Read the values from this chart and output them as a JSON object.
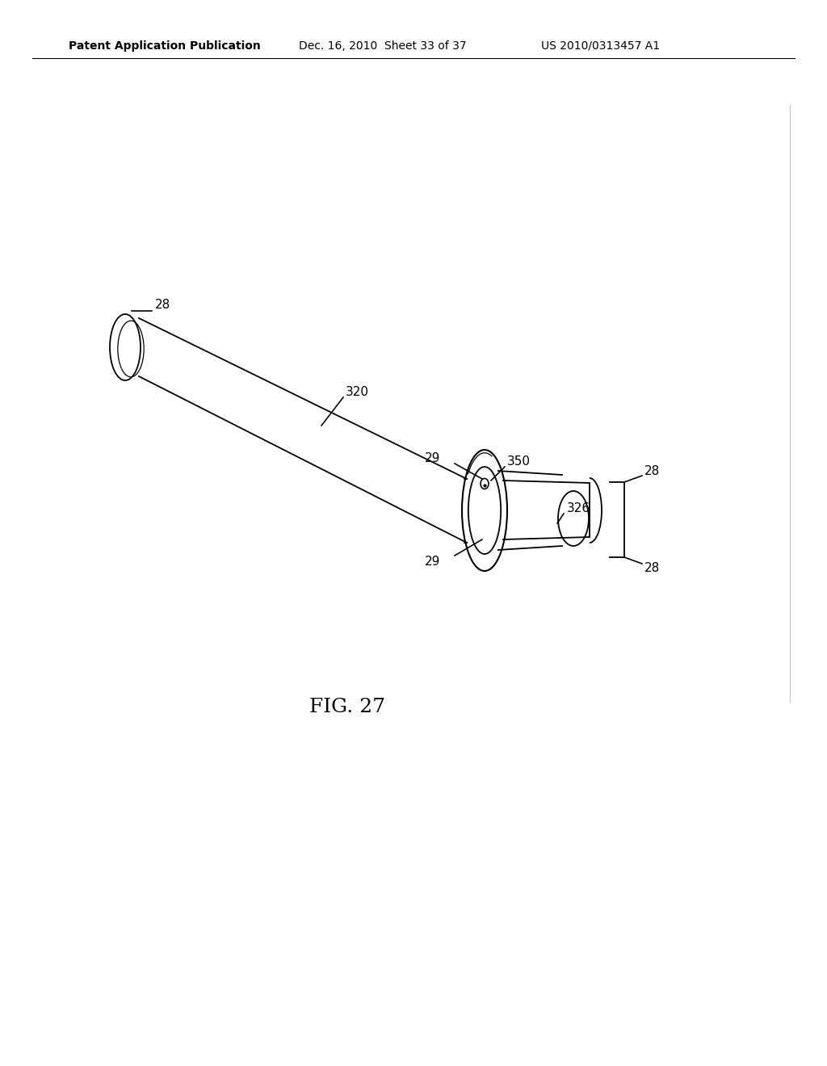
{
  "bg_color": "#ffffff",
  "header_left": "Patent Application Publication",
  "header_mid": "Dec. 16, 2010  Sheet 33 of 37",
  "header_right": "US 2010/0313457 A1",
  "fig_label": "FIG. 27",
  "line_color": "#000000",
  "line_width": 1.3,
  "font_size_header": 10,
  "font_size_label": 11,
  "font_size_fig": 18
}
